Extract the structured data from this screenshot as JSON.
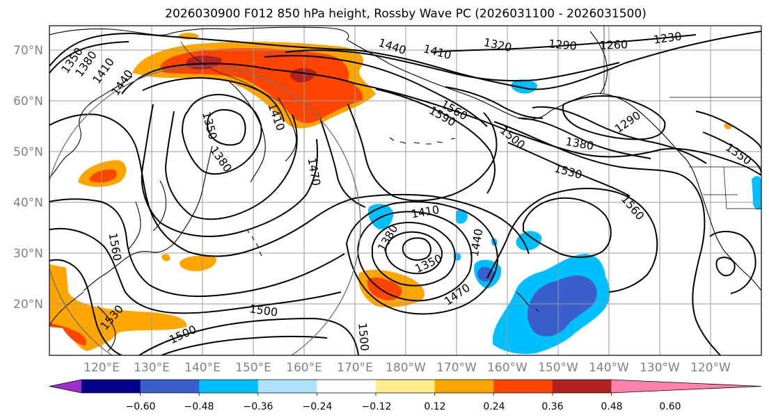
{
  "title": "2026030900 F012 850 hPa height, Rossby Wave PC (2026031100 - 2026031500)",
  "map": {
    "lat_labels": [
      "70°N",
      "60°N",
      "50°N",
      "40°N",
      "30°N",
      "20°N"
    ],
    "lon_labels": [
      "120°E",
      "130°E",
      "140°E",
      "150°E",
      "160°E",
      "170°E",
      "180°W",
      "170°W",
      "160°W",
      "150°W",
      "140°W",
      "130°W",
      "120°W"
    ],
    "contour_labels": [
      "1350",
      "1380",
      "1410",
      "1440",
      "1440",
      "1410",
      "1320",
      "1290",
      "1260",
      "1230",
      "1410",
      "1350",
      "1380",
      "1560",
      "1590",
      "1500",
      "1290",
      "1380",
      "1530",
      "1350",
      "1470",
      "1560",
      "1410",
      "1380",
      "1350",
      "1440",
      "1470",
      "1560",
      "1530",
      "1500",
      "1500",
      "1500"
    ]
  },
  "colorbar": {
    "tick_labels": [
      "−0.60",
      "−0.48",
      "−0.36",
      "−0.24",
      "−0.12",
      "0.12",
      "0.24",
      "0.36",
      "0.48",
      "0.60"
    ],
    "colors": [
      "#9932cc",
      "#00008b",
      "#3a5fcd",
      "#00bfff",
      "#b0e2ff",
      "#ffffff",
      "#ffec8b",
      "#ffa500",
      "#ff4500",
      "#b22222",
      "#ff82ab"
    ]
  },
  "shading_colors": {
    "neg_deep": "#3a5fcd",
    "neg_mid": "#00bfff",
    "pos_light": "#ffa500",
    "pos_mid": "#ff4500",
    "pos_deep": "#b22222"
  }
}
